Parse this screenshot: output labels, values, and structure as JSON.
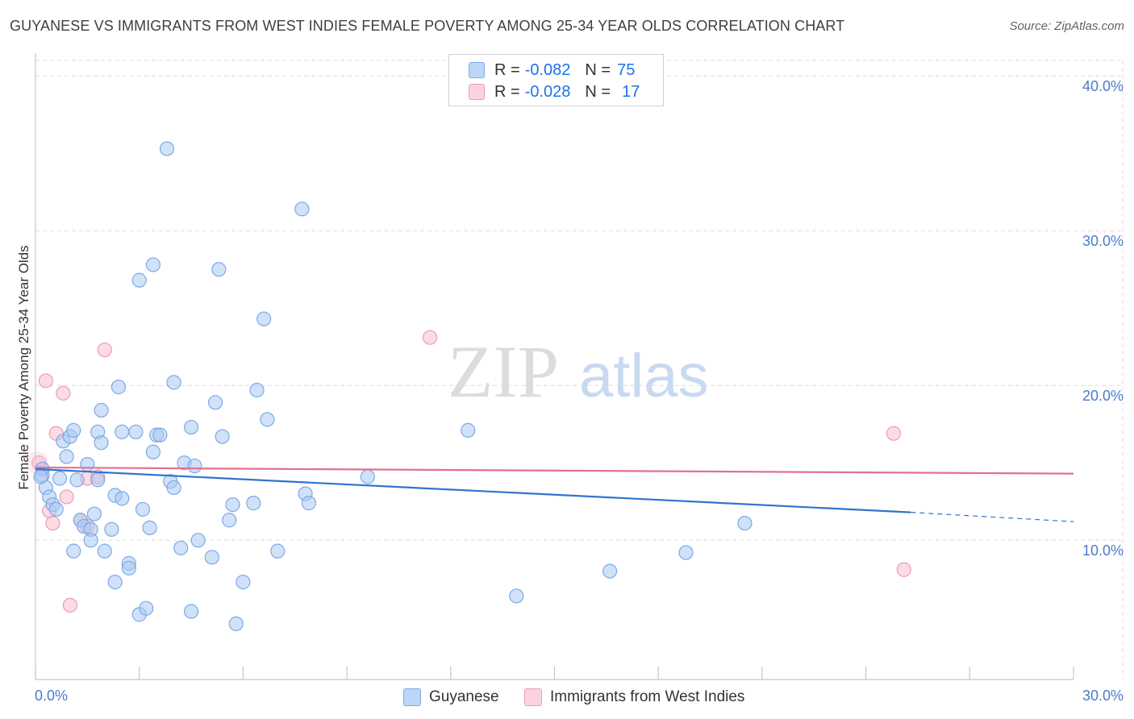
{
  "title": "GUYANESE VS IMMIGRANTS FROM WEST INDIES FEMALE POVERTY AMONG 25-34 YEAR OLDS CORRELATION CHART",
  "source": "Source: ZipAtlas.com",
  "watermark": {
    "zip": "ZIP",
    "atlas": "atlas"
  },
  "legend": {
    "series1": {
      "r_label": "R =",
      "r_value": "-0.082",
      "n_label": "N =",
      "n_value": "75"
    },
    "series2": {
      "r_label": "R =",
      "r_value": "-0.028",
      "n_label": "N =",
      "n_value": "17"
    }
  },
  "bottom_legend": {
    "series1": "Guyanese",
    "series2": "Immigrants from West Indies"
  },
  "colors": {
    "blue_fill": "#a9c8f2",
    "blue_stroke": "#7baae8",
    "blue_line": "#2f74d0",
    "pink_fill": "#f7bfd0",
    "pink_stroke": "#ee9ab5",
    "pink_line": "#e46f98",
    "axis_text": "#4a7cc9",
    "grid": "#dddddd"
  },
  "chart_data": {
    "type": "scatter",
    "title": "GUYANESE VS IMMIGRANTS FROM WEST INDIES FEMALE POVERTY AMONG 25-34 YEAR OLDS CORRELATION CHART",
    "xlabel": "",
    "ylabel": "Female Poverty Among 25-34 Year Olds",
    "xlim": [
      0,
      30
    ],
    "ylim": [
      1,
      41
    ],
    "x_tick_labels": [
      "0.0%",
      "30.0%"
    ],
    "y_ticks": [
      10,
      20,
      30,
      40
    ],
    "y_tick_labels": [
      "10.0%",
      "20.0%",
      "30.0%",
      "40.0%"
    ],
    "series": [
      {
        "name": "Guyanese",
        "R": -0.082,
        "N": 75,
        "trend": {
          "x0": 0,
          "y0": 14.6,
          "x1": 25.3,
          "y1": 11.8,
          "dash_to_x": 30,
          "dash_to_y": 11.2
        },
        "points": [
          [
            0.2,
            14.6
          ],
          [
            0.2,
            14.2
          ],
          [
            0.3,
            13.4
          ],
          [
            0.4,
            12.8
          ],
          [
            0.5,
            12.3
          ],
          [
            0.6,
            12.0
          ],
          [
            0.7,
            14.0
          ],
          [
            0.8,
            16.4
          ],
          [
            0.9,
            15.4
          ],
          [
            1.0,
            16.7
          ],
          [
            1.1,
            17.1
          ],
          [
            1.1,
            9.3
          ],
          [
            1.2,
            13.9
          ],
          [
            1.3,
            11.3
          ],
          [
            1.4,
            10.9
          ],
          [
            1.5,
            14.9
          ],
          [
            1.6,
            10.7
          ],
          [
            1.6,
            10.0
          ],
          [
            1.7,
            11.7
          ],
          [
            1.8,
            13.9
          ],
          [
            1.8,
            17.0
          ],
          [
            1.9,
            16.3
          ],
          [
            1.9,
            18.4
          ],
          [
            2.0,
            9.3
          ],
          [
            2.2,
            10.7
          ],
          [
            2.3,
            7.3
          ],
          [
            2.3,
            12.9
          ],
          [
            2.4,
            19.9
          ],
          [
            2.5,
            17.0
          ],
          [
            2.5,
            12.7
          ],
          [
            2.7,
            8.5
          ],
          [
            2.7,
            8.2
          ],
          [
            2.9,
            17.0
          ],
          [
            3.0,
            26.8
          ],
          [
            3.0,
            5.2
          ],
          [
            3.1,
            12.0
          ],
          [
            3.2,
            5.6
          ],
          [
            3.3,
            10.8
          ],
          [
            3.4,
            15.7
          ],
          [
            3.4,
            27.8
          ],
          [
            3.5,
            16.8
          ],
          [
            3.6,
            16.8
          ],
          [
            3.8,
            35.3
          ],
          [
            3.9,
            13.8
          ],
          [
            4.0,
            20.2
          ],
          [
            4.0,
            13.4
          ],
          [
            4.2,
            9.5
          ],
          [
            4.3,
            15.0
          ],
          [
            4.5,
            17.3
          ],
          [
            4.5,
            5.4
          ],
          [
            4.6,
            14.8
          ],
          [
            4.7,
            10.0
          ],
          [
            5.1,
            8.9
          ],
          [
            5.2,
            18.9
          ],
          [
            5.3,
            27.5
          ],
          [
            5.4,
            16.7
          ],
          [
            5.6,
            11.3
          ],
          [
            5.7,
            12.3
          ],
          [
            5.8,
            4.6
          ],
          [
            6.0,
            7.3
          ],
          [
            6.3,
            12.4
          ],
          [
            6.4,
            19.7
          ],
          [
            6.6,
            24.3
          ],
          [
            6.7,
            17.8
          ],
          [
            7.0,
            9.3
          ],
          [
            7.7,
            31.4
          ],
          [
            7.8,
            13.0
          ],
          [
            7.9,
            12.4
          ],
          [
            9.6,
            14.1
          ],
          [
            12.5,
            17.1
          ],
          [
            13.9,
            6.4
          ],
          [
            16.6,
            8.0
          ],
          [
            18.8,
            9.2
          ],
          [
            20.5,
            11.1
          ],
          [
            0.15,
            14.1
          ]
        ]
      },
      {
        "name": "Immigrants from West Indies",
        "R": -0.028,
        "N": 17,
        "trend": {
          "x0": 0,
          "y0": 14.7,
          "x1": 30,
          "y1": 14.3
        },
        "points": [
          [
            0.1,
            15.0
          ],
          [
            0.2,
            14.6
          ],
          [
            0.3,
            20.3
          ],
          [
            0.4,
            11.9
          ],
          [
            0.5,
            11.1
          ],
          [
            0.6,
            16.9
          ],
          [
            0.8,
            19.5
          ],
          [
            0.9,
            12.8
          ],
          [
            1.0,
            5.8
          ],
          [
            1.3,
            11.3
          ],
          [
            1.5,
            14.0
          ],
          [
            1.5,
            10.9
          ],
          [
            1.8,
            14.1
          ],
          [
            2.0,
            22.3
          ],
          [
            11.4,
            23.1
          ],
          [
            24.8,
            16.9
          ],
          [
            25.1,
            8.1
          ]
        ]
      }
    ]
  }
}
